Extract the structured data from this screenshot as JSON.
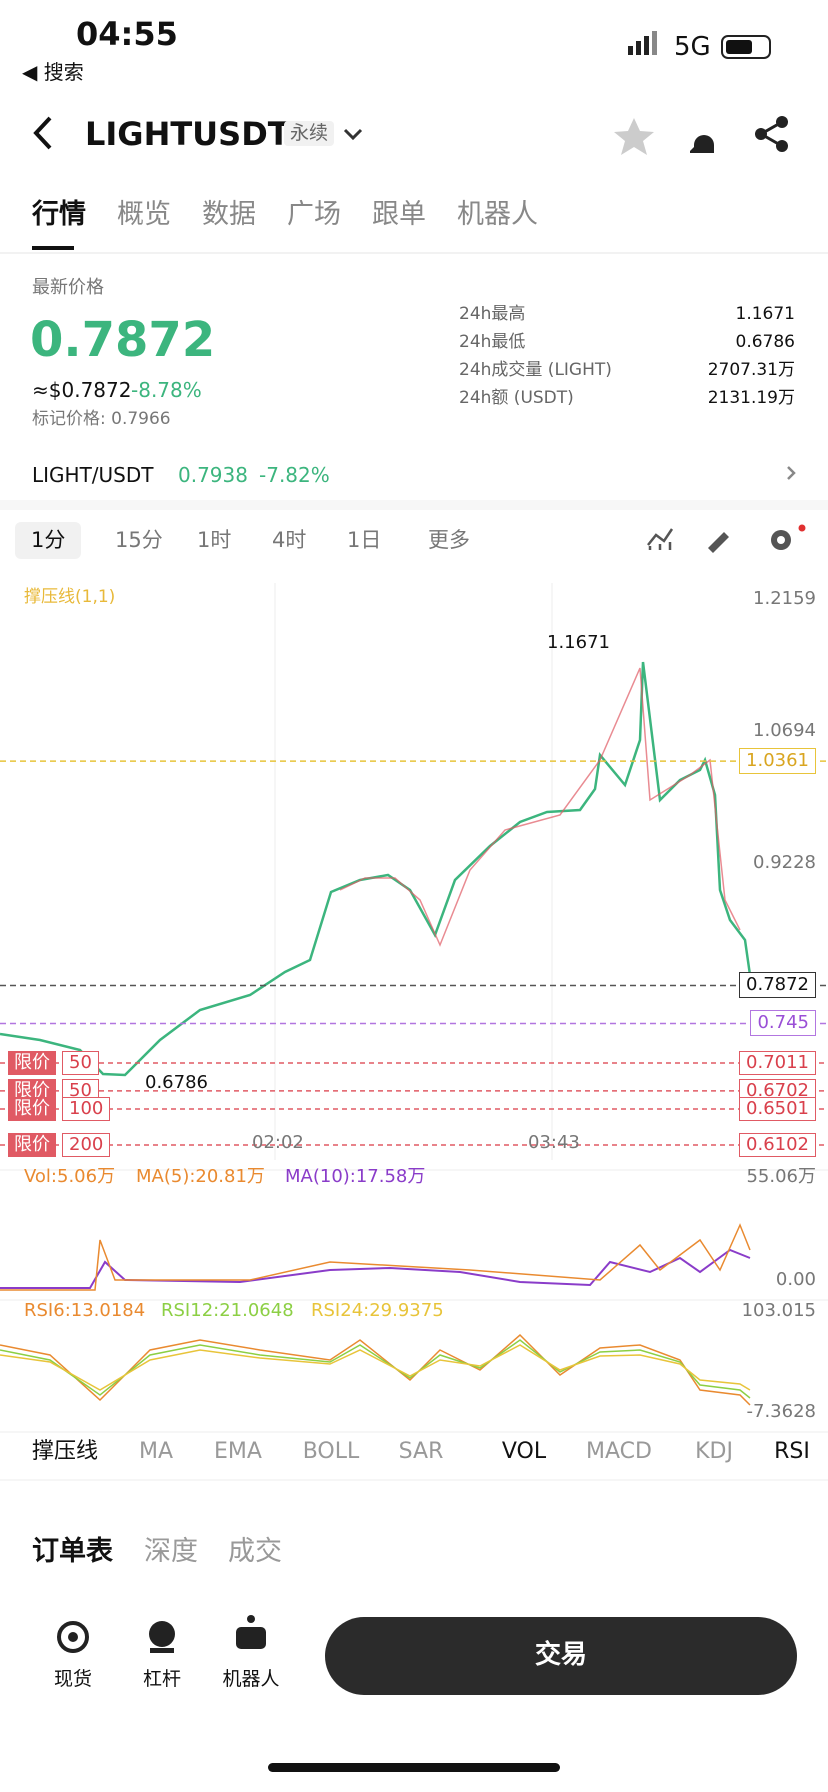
{
  "status_bar": {
    "time": "04:55",
    "back": "◀ 搜索",
    "network": "5G"
  },
  "header": {
    "symbol": "LIGHTUSDT",
    "tag": "永续"
  },
  "tabs": [
    "行情",
    "概览",
    "数据",
    "广场",
    "跟单",
    "机器人"
  ],
  "price": {
    "label": "最新价格",
    "last": "0.7872",
    "usd": "≈$0.7872",
    "change": "-8.78%",
    "mark": "标记价格: 0.7966"
  },
  "stats": [
    {
      "label": "24h最高",
      "value": "1.1671"
    },
    {
      "label": "24h最低",
      "value": "0.6786"
    },
    {
      "label": "24h成交量 (LIGHT)",
      "value": "2707.31万"
    },
    {
      "label": "24h额 (USDT)",
      "value": "2131.19万"
    }
  ],
  "spot": {
    "pair": "LIGHT/USDT",
    "price": "0.7938",
    "change": "-7.82%"
  },
  "intervals": [
    "1分",
    "15分",
    "1时",
    "4时",
    "1日",
    "更多"
  ],
  "chart": {
    "indicator": "撑压线(1,1)",
    "price_ticks": [
      "1.2159",
      "1.0694",
      "0.9228"
    ],
    "resistance": "1.0361",
    "current": "0.7872",
    "support": "0.745",
    "limit_lines": [
      "0.7011",
      "0.6702",
      "0.6501",
      "0.6102"
    ],
    "orders": [
      {
        "label": "限价",
        "qty": "50"
      },
      {
        "label": "限价",
        "qty": "50"
      },
      {
        "label": "限价",
        "qty": "100"
      },
      {
        "label": "限价",
        "qty": "200"
      }
    ],
    "high": "1.1671",
    "low": "0.6786",
    "times": [
      "02:02",
      "03:43"
    ]
  },
  "volume": {
    "vol": "Vol:5.06万",
    "ma5": "MA(5):20.81万",
    "ma10": "MA(10):17.58万",
    "max": "55.06万",
    "min": "0.00"
  },
  "rsi": {
    "rsi6": "RSI6:13.0184",
    "rsi12": "RSI12:21.0648",
    "rsi24": "RSI24:29.9375",
    "max": "103.015",
    "min": "-7.3628"
  },
  "indicator_tabs": [
    "撑压线",
    "MA",
    "EMA",
    "BOLL",
    "SAR",
    "VOL",
    "MACD",
    "KDJ",
    "RSI"
  ],
  "order_tabs": [
    "订单表",
    "深度",
    "成交"
  ],
  "bottom_nav": [
    "现货",
    "杠杆",
    "机器人"
  ],
  "trade_button": "交易"
}
